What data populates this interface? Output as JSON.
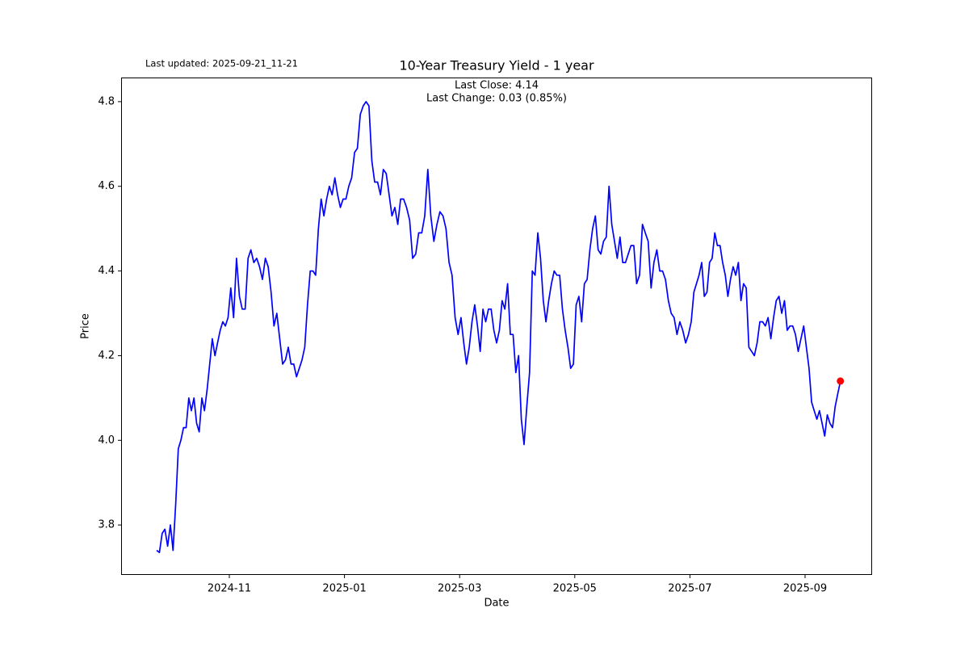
{
  "chart_data": {
    "type": "line",
    "title": "10-Year Treasury Yield - 1 year",
    "updated": "Last updated: 2025-09-21_11-21",
    "annotations": [
      "Last Close: 4.14",
      "Last Change: 0.03 (0.85%)"
    ],
    "x_label": "Date",
    "y_label": "Price",
    "color": "#0000ff",
    "last_point_color": "#ff0000",
    "ylim": [
      3.682,
      4.857
    ],
    "yticks": [
      3.8,
      {
        "value": 4,
        "label": "4.0"
      },
      4.2,
      4.4,
      4.6,
      4.8
    ],
    "xticks": [
      "2024-11",
      "2025-01",
      "2025-03",
      "2025-05",
      "2025-07",
      "2025-09"
    ],
    "x": [
      "2024-09",
      "2024-09",
      "2024-09",
      "2024-09",
      "2024-09",
      "2024-09",
      "2024-10",
      "2024-10",
      "2024-10",
      "2024-10",
      "2024-10",
      "2024-10",
      "2024-10",
      "2024-10",
      "2024-10",
      "2024-10",
      "2024-10",
      "2024-10",
      "2024-10",
      "2024-10",
      "2024-10",
      "2024-10",
      "2024-10",
      "2024-10",
      "2024-10",
      "2024-10",
      "2024-10",
      "2024-10",
      "2024-11",
      "2024-11",
      "2024-11",
      "2024-11",
      "2024-11",
      "2024-11",
      "2024-11",
      "2024-11",
      "2024-11",
      "2024-11",
      "2024-11",
      "2024-11",
      "2024-11",
      "2024-11",
      "2024-11",
      "2024-11",
      "2024-11",
      "2024-11",
      "2024-11",
      "2024-11",
      "2024-12",
      "2024-12",
      "2024-12",
      "2024-12",
      "2024-12",
      "2024-12",
      "2024-12",
      "2024-12",
      "2024-12",
      "2024-12",
      "2024-12",
      "2024-12",
      "2024-12",
      "2024-12",
      "2024-12",
      "2024-12",
      "2024-12",
      "2024-12",
      "2024-12",
      "2024-12",
      "2024-12",
      "2025-01",
      "2025-01",
      "2025-01",
      "2025-01",
      "2025-01",
      "2025-01",
      "2025-01",
      "2025-01",
      "2025-01",
      "2025-01",
      "2025-01",
      "2025-01",
      "2025-01",
      "2025-01",
      "2025-01",
      "2025-01",
      "2025-01",
      "2025-01",
      "2025-01",
      "2025-01",
      "2025-02",
      "2025-02",
      "2025-02",
      "2025-02",
      "2025-02",
      "2025-02",
      "2025-02",
      "2025-02",
      "2025-02",
      "2025-02",
      "2025-02",
      "2025-02",
      "2025-02",
      "2025-02",
      "2025-02",
      "2025-02",
      "2025-02",
      "2025-02",
      "2025-02",
      "2025-03",
      "2025-03",
      "2025-03",
      "2025-03",
      "2025-03",
      "2025-03",
      "2025-03",
      "2025-03",
      "2025-03",
      "2025-03",
      "2025-03",
      "2025-03",
      "2025-03",
      "2025-03",
      "2025-03",
      "2025-03",
      "2025-03",
      "2025-03",
      "2025-03",
      "2025-03",
      "2025-03",
      "2025-04",
      "2025-04",
      "2025-04",
      "2025-04",
      "2025-04",
      "2025-04",
      "2025-04",
      "2025-04",
      "2025-04",
      "2025-04",
      "2025-04",
      "2025-04",
      "2025-04",
      "2025-04",
      "2025-04",
      "2025-04",
      "2025-04",
      "2025-04",
      "2025-04",
      "2025-04",
      "2025-04",
      "2025-05",
      "2025-05",
      "2025-05",
      "2025-05",
      "2025-05",
      "2025-05",
      "2025-05",
      "2025-05",
      "2025-05",
      "2025-05",
      "2025-05",
      "2025-05",
      "2025-05",
      "2025-05",
      "2025-05",
      "2025-05",
      "2025-05",
      "2025-05",
      "2025-05",
      "2025-05",
      "2025-05",
      "2025-06",
      "2025-06",
      "2025-06",
      "2025-06",
      "2025-06",
      "2025-06",
      "2025-06",
      "2025-06",
      "2025-06",
      "2025-06",
      "2025-06",
      "2025-06",
      "2025-06",
      "2025-06",
      "2025-06",
      "2025-06",
      "2025-06",
      "2025-06",
      "2025-06",
      "2025-06",
      "2025-07",
      "2025-07",
      "2025-07",
      "2025-07",
      "2025-07",
      "2025-07",
      "2025-07",
      "2025-07",
      "2025-07",
      "2025-07",
      "2025-07",
      "2025-07",
      "2025-07",
      "2025-07",
      "2025-07",
      "2025-07",
      "2025-07",
      "2025-07",
      "2025-07",
      "2025-07",
      "2025-07",
      "2025-07",
      "2025-08",
      "2025-08",
      "2025-08",
      "2025-08",
      "2025-08",
      "2025-08",
      "2025-08",
      "2025-08",
      "2025-08",
      "2025-08",
      "2025-08",
      "2025-08",
      "2025-08",
      "2025-08",
      "2025-08",
      "2025-08",
      "2025-08",
      "2025-08",
      "2025-08",
      "2025-08",
      "2025-08",
      "2025-09",
      "2025-09",
      "2025-09",
      "2025-09",
      "2025-09",
      "2025-09",
      "2025-09",
      "2025-09",
      "2025-09",
      "2025-09",
      "2025-09",
      "2025-09",
      "2025-09",
      "2025-09"
    ],
    "values": [
      3.74,
      3.735,
      3.78,
      3.79,
      3.75,
      3.8,
      3.74,
      3.85,
      3.98,
      4.0,
      4.03,
      4.03,
      4.1,
      4.07,
      4.1,
      4.04,
      4.02,
      4.1,
      4.07,
      4.12,
      4.18,
      4.24,
      4.2,
      4.23,
      4.26,
      4.28,
      4.27,
      4.29,
      4.36,
      4.29,
      4.43,
      4.34,
      4.31,
      4.31,
      4.43,
      4.45,
      4.42,
      4.43,
      4.41,
      4.38,
      4.43,
      4.41,
      4.35,
      4.27,
      4.3,
      4.24,
      4.18,
      4.19,
      4.22,
      4.18,
      4.18,
      4.15,
      4.17,
      4.19,
      4.22,
      4.32,
      4.4,
      4.4,
      4.39,
      4.5,
      4.57,
      4.53,
      4.57,
      4.6,
      4.58,
      4.62,
      4.58,
      4.55,
      4.57,
      4.57,
      4.6,
      4.62,
      4.68,
      4.69,
      4.77,
      4.79,
      4.8,
      4.79,
      4.66,
      4.61,
      4.61,
      4.58,
      4.64,
      4.63,
      4.58,
      4.53,
      4.55,
      4.51,
      4.57,
      4.57,
      4.55,
      4.52,
      4.43,
      4.44,
      4.49,
      4.49,
      4.53,
      4.64,
      4.53,
      4.47,
      4.51,
      4.54,
      4.53,
      4.5,
      4.42,
      4.39,
      4.29,
      4.25,
      4.29,
      4.23,
      4.18,
      4.22,
      4.28,
      4.32,
      4.27,
      4.21,
      4.31,
      4.28,
      4.31,
      4.31,
      4.26,
      4.23,
      4.26,
      4.33,
      4.31,
      4.37,
      4.25,
      4.25,
      4.16,
      4.2,
      4.05,
      3.99,
      4.08,
      4.16,
      4.4,
      4.39,
      4.49,
      4.43,
      4.33,
      4.28,
      4.33,
      4.37,
      4.4,
      4.39,
      4.39,
      4.31,
      4.26,
      4.22,
      4.17,
      4.18,
      4.32,
      4.34,
      4.28,
      4.37,
      4.38,
      4.45,
      4.5,
      4.53,
      4.45,
      4.44,
      4.47,
      4.48,
      4.6,
      4.51,
      4.47,
      4.43,
      4.48,
      4.42,
      4.42,
      4.44,
      4.46,
      4.46,
      4.37,
      4.39,
      4.51,
      4.49,
      4.47,
      4.36,
      4.42,
      4.45,
      4.4,
      4.4,
      4.38,
      4.33,
      4.3,
      4.29,
      4.25,
      4.28,
      4.26,
      4.23,
      4.25,
      4.28,
      4.35,
      4.37,
      4.39,
      4.42,
      4.34,
      4.35,
      4.42,
      4.43,
      4.49,
      4.46,
      4.46,
      4.42,
      4.39,
      4.34,
      4.38,
      4.41,
      4.39,
      4.42,
      4.33,
      4.37,
      4.36,
      4.22,
      4.21,
      4.2,
      4.23,
      4.28,
      4.28,
      4.27,
      4.29,
      4.24,
      4.29,
      4.33,
      4.34,
      4.3,
      4.33,
      4.26,
      4.27,
      4.27,
      4.25,
      4.21,
      4.24,
      4.27,
      4.22,
      4.17,
      4.09,
      4.07,
      4.05,
      4.07,
      4.04,
      4.01,
      4.06,
      4.04,
      4.03,
      4.08,
      4.11,
      4.14
    ]
  }
}
